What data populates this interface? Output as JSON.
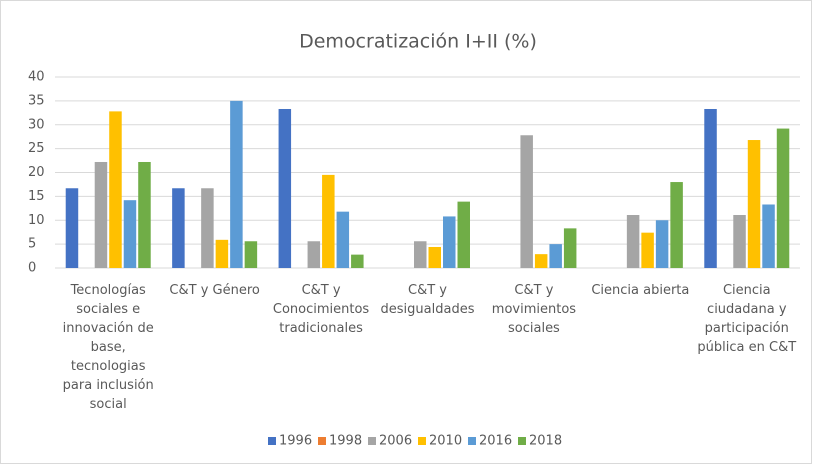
{
  "chart_data": {
    "type": "bar",
    "title": "Democratización I+II (%)",
    "categories": [
      "Tecnologías sociales e innovación de base, tecnologias para inclusión social",
      "C&T y Género",
      "C&T y Conocimientos tradicionales",
      "C&T y desigualdades",
      "C&T y movimientos sociales",
      "Ciencia abierta",
      "Ciencia ciudadana y participación pública en C&T"
    ],
    "series": [
      {
        "name": "1996",
        "color": "#4472c4",
        "values": [
          16.7,
          16.7,
          33.3,
          0,
          0,
          0,
          33.3
        ]
      },
      {
        "name": "1998",
        "color": "#ed7d31",
        "values": [
          0,
          0,
          0,
          0,
          0,
          0,
          0
        ]
      },
      {
        "name": "2006",
        "color": "#a5a5a5",
        "values": [
          22.2,
          16.7,
          5.6,
          5.6,
          27.8,
          11.1,
          11.1
        ]
      },
      {
        "name": "2010",
        "color": "#ffc000",
        "values": [
          32.8,
          5.9,
          19.5,
          4.4,
          2.9,
          7.4,
          26.8
        ]
      },
      {
        "name": "2016",
        "color": "#5b9bd5",
        "values": [
          14.2,
          35,
          11.8,
          10.8,
          5,
          10,
          13.3
        ]
      },
      {
        "name": "2018",
        "color": "#70ad47",
        "values": [
          22.2,
          5.6,
          2.8,
          13.9,
          8.3,
          18,
          29.2
        ]
      }
    ],
    "ylim": [
      0,
      40
    ],
    "yticks": [
      0,
      5,
      10,
      15,
      20,
      25,
      30,
      35,
      40
    ],
    "grid": true,
    "legend": "bottom"
  }
}
